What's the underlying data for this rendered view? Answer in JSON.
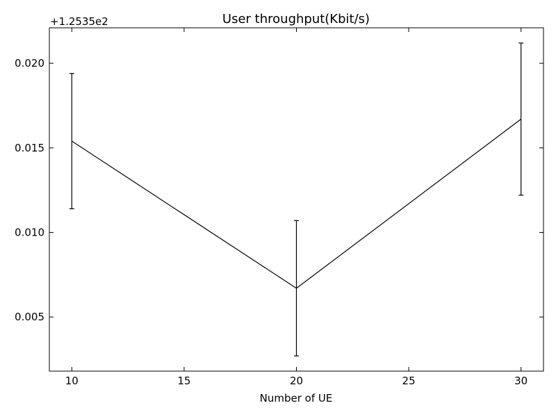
{
  "chart_data": {
    "type": "line",
    "title": "User throughput(Kbit/s)",
    "xlabel": "Number of UE",
    "ylabel": "",
    "y_offset_label": "+1.2535e2",
    "y_offset": 125.35,
    "xlim": [
      9,
      31
    ],
    "ylim": [
      0.0018,
      0.0221
    ],
    "x_ticks": [
      10,
      15,
      20,
      25,
      30
    ],
    "x_tick_labels": [
      "10",
      "15",
      "20",
      "25",
      "30"
    ],
    "y_ticks": [
      0.005,
      0.01,
      0.015,
      0.02
    ],
    "y_tick_labels": [
      "0.005",
      "0.010",
      "0.015",
      "0.020"
    ],
    "grid": false,
    "series": [
      {
        "x": [
          10,
          20,
          30
        ],
        "y": [
          0.0154,
          0.0067,
          0.0167
        ],
        "yerr": [
          0.004,
          0.004,
          0.0045
        ],
        "color": "#000000"
      }
    ]
  }
}
